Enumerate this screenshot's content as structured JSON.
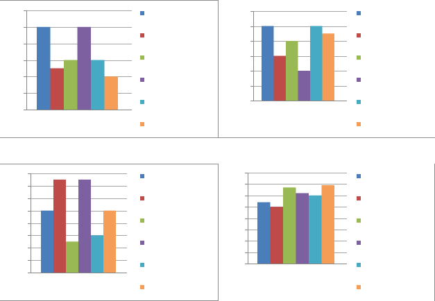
{
  "chart_data": [
    {
      "type": "bar",
      "categories": [
        ""
      ],
      "series": [
        {
          "values": [
            5
          ]
        },
        {
          "values": [
            2.5
          ]
        },
        {
          "values": [
            3
          ]
        },
        {
          "values": [
            5
          ]
        },
        {
          "values": [
            3
          ]
        },
        {
          "values": [
            2
          ]
        }
      ],
      "ylim": [
        0,
        6
      ],
      "grid": true,
      "legend": "right"
    },
    {
      "type": "bar",
      "categories": [
        ""
      ],
      "series": [
        {
          "values": [
            5
          ]
        },
        {
          "values": [
            3
          ]
        },
        {
          "values": [
            4
          ]
        },
        {
          "values": [
            2
          ]
        },
        {
          "values": [
            5
          ]
        },
        {
          "values": [
            4.5
          ]
        }
      ],
      "ylim": [
        0,
        6
      ],
      "grid": true,
      "legend": "right"
    },
    {
      "type": "bar",
      "categories": [
        ""
      ],
      "series": [
        {
          "values": [
            5
          ]
        },
        {
          "values": [
            7.5
          ]
        },
        {
          "values": [
            2.5
          ]
        },
        {
          "values": [
            7.5
          ]
        },
        {
          "values": [
            3
          ]
        },
        {
          "values": [
            5
          ]
        }
      ],
      "ylim": [
        0,
        8
      ],
      "grid": true,
      "legend": "right"
    },
    {
      "type": "bar",
      "categories": [
        ""
      ],
      "series": [
        {
          "values": [
            5.4
          ]
        },
        {
          "values": [
            5
          ]
        },
        {
          "values": [
            6.7
          ]
        },
        {
          "values": [
            6.2
          ]
        },
        {
          "values": [
            6
          ]
        },
        {
          "values": [
            6.9
          ]
        }
      ],
      "ylim": [
        0,
        8
      ],
      "grid": true,
      "legend": "right"
    }
  ],
  "colors": {
    "series": [
      "#4a7ebb",
      "#be4b48",
      "#98b954",
      "#7d60a0",
      "#46aac5",
      "#f59d56"
    ],
    "grid": "#878787",
    "frame": "#8c8c8c"
  }
}
